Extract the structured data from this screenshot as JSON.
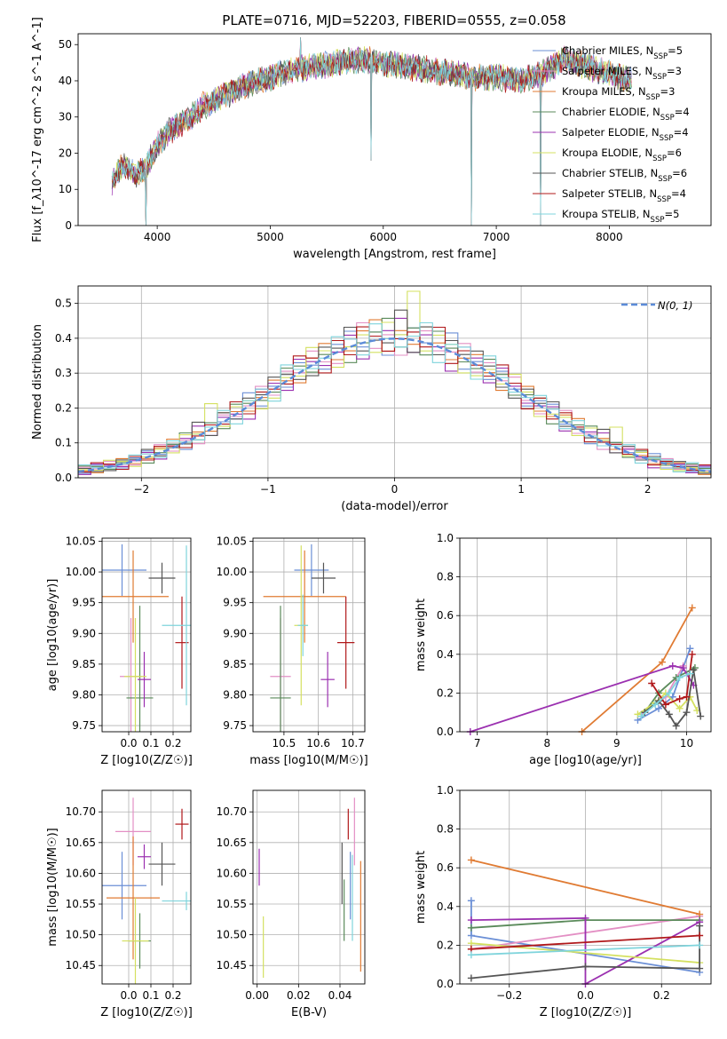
{
  "title": "PLATE=0716, MJD=52203, FIBERID=0555, z=0.058",
  "colors": {
    "chabrier_miles": "#6b8fd6",
    "salpeter_miles": "#e38fc4",
    "kroupa_miles": "#e07b33",
    "chabrier_elodie": "#5a8a5a",
    "salpeter_elodie": "#9b30b0",
    "kroupa_elodie": "#d4e060",
    "chabrier_stelib": "#555555",
    "salpeter_stelib": "#b0181a",
    "kroupa_stelib": "#7fd4dc",
    "normal": "#5b8bd8"
  },
  "chart_data": [
    {
      "type": "line",
      "xlabel": "wavelength [Angstrom, rest frame]",
      "ylabel": "Flux [f_λ10^-17 erg cm^-2 s^-1 A^-1]",
      "xlim": [
        3300,
        8900
      ],
      "ylim": [
        0,
        53
      ],
      "xticks": [
        4000,
        5000,
        6000,
        7000,
        8000
      ],
      "yticks": [
        0,
        10,
        20,
        30,
        40,
        50
      ],
      "grid": false,
      "legend_position": "right",
      "spectrum_anchors": {
        "x": [
          3600,
          3700,
          3800,
          3900,
          4000,
          4100,
          4200,
          4300,
          4400,
          4600,
          4800,
          5000,
          5200,
          5400,
          5600,
          5800,
          6000,
          6200,
          6400,
          6600,
          6800,
          7000,
          7200,
          7400,
          7600,
          7800,
          8000,
          8200
        ],
        "y": [
          12,
          17,
          14,
          16,
          22,
          26,
          28,
          30,
          33,
          36,
          39,
          41,
          43,
          44,
          45,
          46,
          45,
          44,
          43,
          42,
          41,
          41,
          40,
          42,
          46,
          44,
          42,
          40
        ]
      },
      "absorption_features": [
        {
          "x": 3900,
          "y": 0
        },
        {
          "x": 5270,
          "y": 52
        },
        {
          "x": 5890,
          "y": 18
        },
        {
          "x": 6780,
          "y": 0
        },
        {
          "x": 7390,
          "y": 0
        }
      ],
      "series": [
        {
          "name": "Chabrier MILES, N",
          "sub": "SSP",
          "value": "=5",
          "color_key": "chabrier_miles"
        },
        {
          "name": "Salpeter MILES, N",
          "sub": "SSP",
          "value": "=3",
          "color_key": "salpeter_miles"
        },
        {
          "name": "Kroupa MILES, N",
          "sub": "SSP",
          "value": "=3",
          "color_key": "kroupa_miles"
        },
        {
          "name": "Chabrier ELODIE, N",
          "sub": "SSP",
          "value": "=4",
          "color_key": "chabrier_elodie"
        },
        {
          "name": "Salpeter ELODIE, N",
          "sub": "SSP",
          "value": "=4",
          "color_key": "salpeter_elodie"
        },
        {
          "name": "Kroupa ELODIE, N",
          "sub": "SSP",
          "value": "=6",
          "color_key": "kroupa_elodie"
        },
        {
          "name": "Chabrier STELIB, N",
          "sub": "SSP",
          "value": "=6",
          "color_key": "chabrier_stelib"
        },
        {
          "name": "Salpeter STELIB, N",
          "sub": "SSP",
          "value": "=4",
          "color_key": "salpeter_stelib"
        },
        {
          "name": "Kroupa STELIB, N",
          "sub": "SSP",
          "value": "=5",
          "color_key": "kroupa_stelib"
        }
      ]
    },
    {
      "type": "histogram",
      "xlabel": "(data-model)/error",
      "ylabel": "Normed distribution",
      "xlim": [
        -2.5,
        2.5
      ],
      "ylim": [
        0,
        0.55
      ],
      "xticks": [
        -2,
        -1,
        0,
        1,
        2
      ],
      "yticks": [
        0.0,
        0.1,
        0.2,
        0.3,
        0.4,
        0.5
      ],
      "grid": true,
      "bin_width": 0.1,
      "legend": {
        "label": "N(0, 1)",
        "position": "top-right"
      },
      "series_offsets": [
        [
          0.01,
          -0.02,
          0.03,
          0.0,
          -0.03,
          0.02,
          0.04,
          -0.01,
          0.02,
          -0.04,
          0.01,
          0.03,
          0.0,
          -0.02,
          0.05,
          -0.03
        ],
        [
          -0.02,
          0.03,
          0.0,
          0.04,
          -0.01,
          -0.03,
          0.02,
          0.05,
          -0.02,
          0.01,
          -0.04,
          0.02,
          0.03,
          -0.01,
          0.0,
          0.04
        ],
        [
          0.03,
          0.0,
          -0.03,
          0.02,
          0.04,
          -0.02,
          -0.01,
          0.03,
          0.05,
          -0.03,
          0.02,
          -0.01,
          0.04,
          0.01,
          -0.02,
          0.0
        ],
        [
          -0.01,
          0.04,
          0.02,
          -0.02,
          0.01,
          0.03,
          -0.04,
          0.0,
          0.02,
          0.05,
          -0.02,
          0.03,
          -0.03,
          0.04,
          0.01,
          -0.01
        ],
        [
          0.02,
          -0.03,
          0.04,
          0.01,
          -0.02,
          0.0,
          0.03,
          -0.04,
          0.01,
          0.02,
          0.05,
          -0.03,
          0.02,
          0.0,
          -0.05,
          0.03
        ],
        [
          -0.03,
          0.01,
          -0.01,
          0.05,
          0.02,
          -0.04,
          0.0,
          0.02,
          -0.03,
          0.04,
          0.01,
          0.12,
          -0.02,
          0.03,
          0.02,
          -0.04
        ],
        [
          0.04,
          0.02,
          -0.02,
          -0.03,
          0.03,
          0.01,
          0.05,
          -0.02,
          0.0,
          -0.01,
          0.07,
          -0.03,
          0.04,
          -0.02,
          0.03,
          0.01
        ],
        [
          0.0,
          -0.01,
          0.05,
          0.02,
          -0.04,
          0.03,
          -0.02,
          0.04,
          0.01,
          -0.03,
          0.0,
          0.02,
          -0.01,
          0.05,
          -0.03,
          0.02
        ],
        [
          -0.04,
          0.05,
          0.01,
          -0.01,
          0.0,
          0.04,
          0.02,
          -0.03,
          0.04,
          0.0,
          -0.02,
          0.01,
          0.05,
          -0.04,
          0.02,
          0.03
        ]
      ]
    },
    {
      "type": "errorbar",
      "xlabel": "Z [log10(Z/Z☉)]",
      "ylabel": "age [log10(age/yr)]",
      "xlim": [
        -0.12,
        0.28
      ],
      "ylim": [
        9.74,
        10.055
      ],
      "xticks": [
        0.0,
        0.1,
        0.2
      ],
      "yticks": [
        9.75,
        9.8,
        9.85,
        9.9,
        9.95,
        10.0,
        10.05
      ],
      "grid": true,
      "points": [
        {
          "x": -0.03,
          "xerr": 0.11,
          "y": 10.003,
          "yerr": 0.042
        },
        {
          "x": 0.01,
          "xerr": 0.05,
          "y": 9.83,
          "yerr": 0.095
        },
        {
          "x": 0.02,
          "xerr": 0.16,
          "y": 9.96,
          "yerr": 0.075
        },
        {
          "x": 0.05,
          "xerr": 0.06,
          "y": 9.795,
          "yerr": 0.15
        },
        {
          "x": 0.07,
          "xerr": 0.03,
          "y": 9.825,
          "yerr": 0.045
        },
        {
          "x": 0.03,
          "xerr": 0.05,
          "y": 9.83,
          "yerr": 0.095
        },
        {
          "x": 0.15,
          "xerr": 0.06,
          "y": 9.99,
          "yerr": 0.025
        },
        {
          "x": 0.24,
          "xerr": 0.03,
          "y": 9.885,
          "yerr": 0.075
        },
        {
          "x": 0.26,
          "xerr": 0.11,
          "y": 9.913,
          "yerr": 0.13
        }
      ]
    },
    {
      "type": "errorbar",
      "xlabel": "mass [log10(M/M☉)]",
      "ylabel": "",
      "xlim": [
        10.41,
        10.735
      ],
      "ylim": [
        9.74,
        10.055
      ],
      "xticks": [
        10.5,
        10.6,
        10.7
      ],
      "yticks": [
        9.75,
        9.8,
        9.85,
        9.9,
        9.95,
        10.0,
        10.05
      ],
      "grid": true,
      "points": [
        {
          "x": 10.58,
          "xerr": 0.05,
          "y": 10.003,
          "yerr": 0.042
        },
        {
          "x": 10.49,
          "xerr": 0.03,
          "y": 9.83,
          "yerr": 0.095
        },
        {
          "x": 10.56,
          "xerr": 0.12,
          "y": 9.96,
          "yerr": 0.075
        },
        {
          "x": 10.49,
          "xerr": 0.03,
          "y": 9.795,
          "yerr": 0.15
        },
        {
          "x": 10.627,
          "xerr": 0.02,
          "y": 9.825,
          "yerr": 0.045
        },
        {
          "x": 10.55,
          "xerr": 0.02,
          "y": 9.913,
          "yerr": 0.13
        },
        {
          "x": 10.615,
          "xerr": 0.035,
          "y": 9.99,
          "yerr": 0.025
        },
        {
          "x": 10.68,
          "xerr": 0.025,
          "y": 9.885,
          "yerr": 0.075
        },
        {
          "x": 10.555,
          "xerr": 0.015,
          "y": 9.913,
          "yerr": 0.05
        }
      ]
    },
    {
      "type": "line",
      "xlabel": "age [log10(age/yr)]",
      "ylabel": "mass weight",
      "xlim": [
        6.75,
        10.35
      ],
      "ylim": [
        0,
        1.0
      ],
      "xticks": [
        7,
        8,
        9,
        10
      ],
      "yticks": [
        0.0,
        0.2,
        0.4,
        0.6,
        0.8,
        1.0
      ],
      "grid": true,
      "series": [
        {
          "x": [
            9.3,
            9.6,
            9.8,
            10.05
          ],
          "y": [
            0.06,
            0.12,
            0.18,
            0.43
          ]
        },
        {
          "x": [
            9.35,
            9.7,
            9.95
          ],
          "y": [
            0.09,
            0.18,
            0.34
          ]
        },
        {
          "x": [
            8.5,
            9.65,
            10.08
          ],
          "y": [
            0.0,
            0.36,
            0.64
          ]
        },
        {
          "x": [
            9.4,
            9.6,
            9.85,
            10.12
          ],
          "y": [
            0.1,
            0.2,
            0.28,
            0.33
          ]
        },
        {
          "x": [
            6.9,
            9.8,
            9.95,
            10.1
          ],
          "y": [
            0.0,
            0.34,
            0.33,
            0.24
          ]
        },
        {
          "x": [
            9.3,
            9.55,
            9.7,
            9.9,
            10.05,
            10.15
          ],
          "y": [
            0.09,
            0.15,
            0.2,
            0.12,
            0.18,
            0.11
          ]
        },
        {
          "x": [
            9.4,
            9.6,
            9.75,
            9.85,
            10.0,
            10.1,
            10.2
          ],
          "y": [
            0.1,
            0.16,
            0.09,
            0.03,
            0.1,
            0.32,
            0.08
          ]
        },
        {
          "x": [
            9.5,
            9.7,
            9.9,
            10.0,
            10.08
          ],
          "y": [
            0.25,
            0.14,
            0.17,
            0.18,
            0.4
          ]
        },
        {
          "x": [
            9.35,
            9.55,
            9.75,
            9.9,
            10.05
          ],
          "y": [
            0.08,
            0.14,
            0.2,
            0.28,
            0.3
          ]
        }
      ]
    },
    {
      "type": "errorbar",
      "xlabel": "Z [log10(Z/Z☉)]",
      "ylabel": "mass [log10(M/M☉)]",
      "xlim": [
        -0.12,
        0.28
      ],
      "ylim": [
        10.42,
        10.735
      ],
      "xticks": [
        0.0,
        0.1,
        0.2
      ],
      "yticks": [
        10.45,
        10.5,
        10.55,
        10.6,
        10.65,
        10.7
      ],
      "grid": true,
      "points": [
        {
          "x": -0.03,
          "xerr": 0.11,
          "y": 10.58,
          "yerr": 0.055
        },
        {
          "x": 0.02,
          "xerr": 0.08,
          "y": 10.668,
          "yerr": 0.055
        },
        {
          "x": 0.02,
          "xerr": 0.12,
          "y": 10.56,
          "yerr": 0.1
        },
        {
          "x": 0.05,
          "xerr": 0.05,
          "y": 10.49,
          "yerr": 0.045
        },
        {
          "x": 0.07,
          "xerr": 0.03,
          "y": 10.627,
          "yerr": 0.02
        },
        {
          "x": 0.03,
          "xerr": 0.06,
          "y": 10.49,
          "yerr": 0.07
        },
        {
          "x": 0.15,
          "xerr": 0.06,
          "y": 10.615,
          "yerr": 0.035
        },
        {
          "x": 0.24,
          "xerr": 0.03,
          "y": 10.68,
          "yerr": 0.025
        },
        {
          "x": 0.26,
          "xerr": 0.11,
          "y": 10.555,
          "yerr": 0.015
        }
      ]
    },
    {
      "type": "errorbar",
      "xlabel": "E(B-V)",
      "ylabel": "",
      "xlim": [
        -0.002,
        0.052
      ],
      "ylim": [
        10.42,
        10.735
      ],
      "xticks": [
        0.0,
        0.02,
        0.04
      ],
      "yticks": [
        10.45,
        10.5,
        10.55,
        10.6,
        10.65,
        10.7
      ],
      "grid": true,
      "points": [
        {
          "x": 0.045,
          "xerr": 0,
          "y": 10.58,
          "yerr": 0.055
        },
        {
          "x": 0.047,
          "xerr": 0,
          "y": 10.668,
          "yerr": 0.055
        },
        {
          "x": 0.05,
          "xerr": 0,
          "y": 10.53,
          "yerr": 0.09
        },
        {
          "x": 0.042,
          "xerr": 0,
          "y": 10.54,
          "yerr": 0.05
        },
        {
          "x": 0.001,
          "xerr": 0,
          "y": 10.61,
          "yerr": 0.03
        },
        {
          "x": 0.003,
          "xerr": 0,
          "y": 10.48,
          "yerr": 0.05
        },
        {
          "x": 0.041,
          "xerr": 0,
          "y": 10.6,
          "yerr": 0.05
        },
        {
          "x": 0.044,
          "xerr": 0,
          "y": 10.68,
          "yerr": 0.025
        },
        {
          "x": 0.046,
          "xerr": 0,
          "y": 10.56,
          "yerr": 0.07
        }
      ]
    },
    {
      "type": "line",
      "xlabel": "Z [log10(Z/Z☉)]",
      "ylabel": "mass weight",
      "xlim": [
        -0.33,
        0.33
      ],
      "ylim": [
        0,
        1.0
      ],
      "xticks": [
        -0.2,
        0.0,
        0.2
      ],
      "yticks": [
        0.0,
        0.2,
        0.4,
        0.6,
        0.8,
        1.0
      ],
      "grid": true,
      "series": [
        {
          "x": [
            -0.3,
            -0.3,
            0.3
          ],
          "y": [
            0.43,
            0.25,
            0.06
          ]
        },
        {
          "x": [
            -0.3,
            0.3
          ],
          "y": [
            0.18,
            0.35
          ]
        },
        {
          "x": [
            -0.3,
            0.3
          ],
          "y": [
            0.64,
            0.36
          ]
        },
        {
          "x": [
            -0.3,
            0.0,
            0.3
          ],
          "y": [
            0.29,
            0.33,
            0.33
          ]
        },
        {
          "x": [
            -0.3,
            0.0,
            0.0,
            0.3
          ],
          "y": [
            0.33,
            0.34,
            0.0,
            0.32
          ]
        },
        {
          "x": [
            -0.3,
            0.3
          ],
          "y": [
            0.21,
            0.11
          ]
        },
        {
          "x": [
            -0.3,
            0.0,
            0.3,
            0.3
          ],
          "y": [
            0.03,
            0.09,
            0.08,
            0.3
          ]
        },
        {
          "x": [
            -0.3,
            0.3
          ],
          "y": [
            0.18,
            0.25
          ]
        },
        {
          "x": [
            -0.3,
            0.3
          ],
          "y": [
            0.15,
            0.2
          ]
        }
      ]
    }
  ]
}
